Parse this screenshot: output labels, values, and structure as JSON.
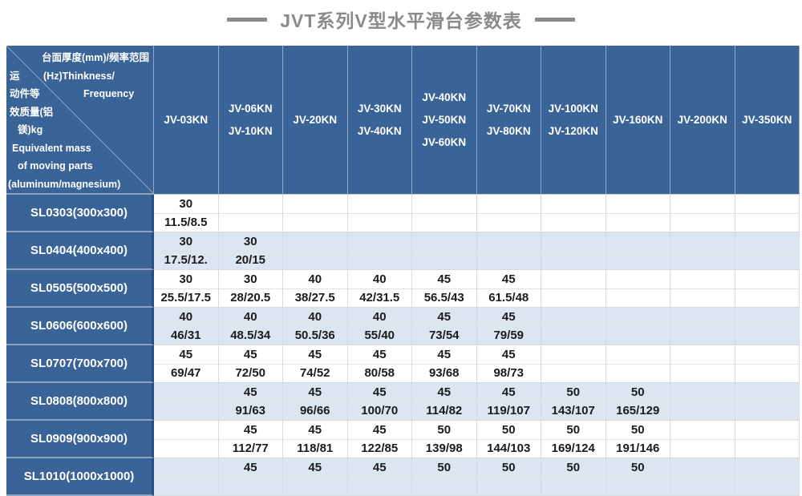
{
  "title": "JVT系列V型水平滑台参数表",
  "colors": {
    "header_blue": "#3a6397",
    "alt_row_blue": "#dce6f1",
    "title_gray": "#8a8a8a"
  },
  "corner_cell": {
    "lines": [
      [
        "台面厚度(mm)/频率范围"
      ],
      [
        "运",
        "(Hz)Thinkness/"
      ],
      [
        "动件等",
        "Frequency"
      ],
      [
        "效质量(铝"
      ],
      [
        "镁)kg"
      ],
      [
        "Equivalent mass"
      ],
      [
        "of moving parts"
      ],
      [
        "(aluminum/magnesium)"
      ]
    ]
  },
  "columns": [
    {
      "lines": [
        "JV-03KN"
      ]
    },
    {
      "lines": [
        "JV-06KN",
        "JV-10KN"
      ]
    },
    {
      "lines": [
        "JV-20KN"
      ]
    },
    {
      "lines": [
        "JV-30KN",
        "JV-40KN"
      ]
    },
    {
      "lines": [
        "JV-40KN",
        "JV-50KN",
        "JV-60KN"
      ]
    },
    {
      "lines": [
        "JV-70KN",
        "JV-80KN"
      ]
    },
    {
      "lines": [
        "JV-100KN",
        "JV-120KN"
      ]
    },
    {
      "lines": [
        "JV-160KN"
      ]
    },
    {
      "lines": [
        "JV-200KN"
      ]
    },
    {
      "lines": [
        "JV-350KN"
      ]
    }
  ],
  "rows": [
    {
      "label": "SL0303(300x300)",
      "cells": [
        [
          "30",
          "11.5/8.5"
        ],
        null,
        null,
        null,
        null,
        null,
        null,
        null,
        null,
        null
      ]
    },
    {
      "label": "SL0404(400x400)",
      "cells": [
        [
          "30",
          "17.5/12."
        ],
        [
          "30",
          "20/15"
        ],
        null,
        null,
        null,
        null,
        null,
        null,
        null,
        null
      ]
    },
    {
      "label": "SL0505(500x500)",
      "cells": [
        [
          "30",
          "25.5/17.5"
        ],
        [
          "30",
          "28/20.5"
        ],
        [
          "40",
          "38/27.5"
        ],
        [
          "40",
          "42/31.5"
        ],
        [
          "45",
          "56.5/43"
        ],
        [
          "45",
          "61.5/48"
        ],
        null,
        null,
        null,
        null
      ]
    },
    {
      "label": "SL0606(600x600)",
      "cells": [
        [
          "40",
          "46/31"
        ],
        [
          "40",
          "48.5/34"
        ],
        [
          "40",
          "50.5/36"
        ],
        [
          "40",
          "55/40"
        ],
        [
          "45",
          "73/54"
        ],
        [
          "45",
          "79/59"
        ],
        null,
        null,
        null,
        null
      ]
    },
    {
      "label": "SL0707(700x700)",
      "cells": [
        [
          "45",
          "69/47"
        ],
        [
          "45",
          "72/50"
        ],
        [
          "45",
          "74/52"
        ],
        [
          "45",
          "80/58"
        ],
        [
          "45",
          "93/68"
        ],
        [
          "45",
          "98/73"
        ],
        null,
        null,
        null,
        null
      ]
    },
    {
      "label": "SL0808(800x800)",
      "cells": [
        null,
        [
          "45",
          "91/63"
        ],
        [
          "45",
          "96/66"
        ],
        [
          "45",
          "100/70"
        ],
        [
          "45",
          "114/82"
        ],
        [
          "45",
          "119/107"
        ],
        [
          "50",
          "143/107"
        ],
        [
          "50",
          "165/129"
        ],
        null,
        null
      ]
    },
    {
      "label": "SL0909(900x900)",
      "cells": [
        null,
        [
          "45",
          "112/77"
        ],
        [
          "45",
          "118/81"
        ],
        [
          "45",
          "122/85"
        ],
        [
          "50",
          "139/98"
        ],
        [
          "50",
          "144/103"
        ],
        [
          "50",
          "169/124"
        ],
        [
          "50",
          "191/146"
        ],
        null,
        null
      ]
    },
    {
      "label": "SL1010(1000x1000)",
      "cells": [
        null,
        [
          "45",
          ""
        ],
        [
          "45",
          ""
        ],
        [
          "45",
          ""
        ],
        [
          "50",
          ""
        ],
        [
          "50",
          ""
        ],
        [
          "50",
          ""
        ],
        [
          "50",
          ""
        ],
        null,
        null
      ]
    }
  ]
}
